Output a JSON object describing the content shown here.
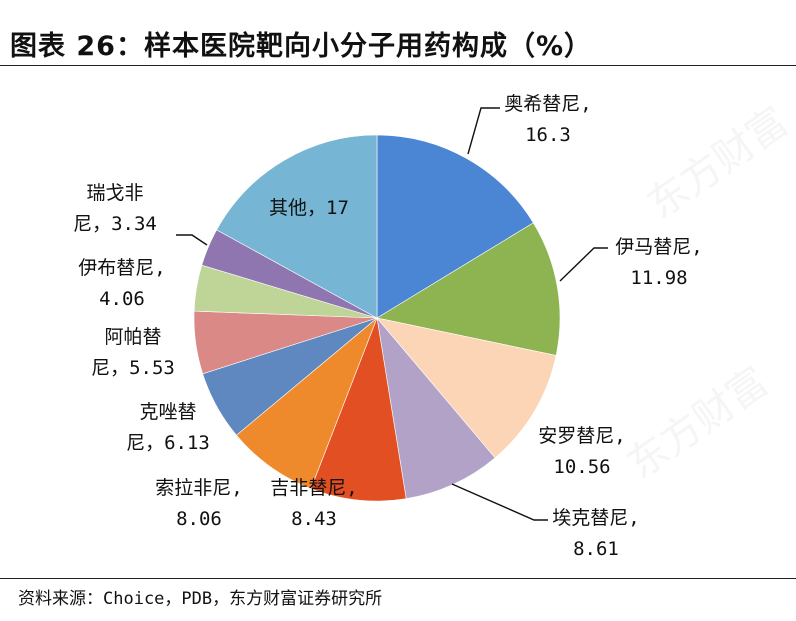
{
  "title": "图表 26：样本医院靶向小分子用药构成（%）",
  "source": "资料来源：Choice，PDB，东方财富证券研究所",
  "chart_data": {
    "type": "pie",
    "title": "图表 26：样本医院靶向小分子用药构成（%）",
    "unit": "%",
    "start": "12 o'clock",
    "direction": "clockwise",
    "slices": [
      {
        "name": "奥希替尼",
        "value": 16.3,
        "color": "#4a86d4",
        "lines": [
          "奥希替尼,",
          "16.3"
        ]
      },
      {
        "name": "伊马替尼",
        "value": 11.98,
        "color": "#8db451",
        "lines": [
          "伊马替尼,",
          "11.98"
        ]
      },
      {
        "name": "安罗替尼",
        "value": 10.56,
        "color": "#fbd5b5",
        "lines": [
          "安罗替尼,",
          "10.56"
        ]
      },
      {
        "name": "埃克替尼",
        "value": 8.61,
        "color": "#b3a2c8",
        "lines": [
          "埃克替尼,",
          "8.61"
        ]
      },
      {
        "name": "吉非替尼",
        "value": 8.43,
        "color": "#e24f22",
        "lines": [
          "吉非替尼,",
          "8.43"
        ]
      },
      {
        "name": "索拉非尼",
        "value": 8.06,
        "color": "#ee8a2c",
        "lines": [
          "索拉非尼,",
          "8.06"
        ]
      },
      {
        "name": "克唑替尼",
        "value": 6.13,
        "color": "#5f88c1",
        "lines": [
          "克唑替",
          "尼，6.13"
        ]
      },
      {
        "name": "阿帕替尼",
        "value": 5.53,
        "color": "#da8987",
        "lines": [
          "阿帕替",
          "尼，5.53"
        ]
      },
      {
        "name": "伊布替尼",
        "value": 4.06,
        "color": "#bed597",
        "lines": [
          "伊布替尼,",
          "4.06"
        ]
      },
      {
        "name": "瑞戈非尼",
        "value": 3.34,
        "color": "#8f76b1",
        "lines": [
          "瑞戈非",
          "尼，3.34"
        ]
      },
      {
        "name": "其他",
        "value": 17,
        "color": "#76b6d4",
        "lines": [
          "其他，17"
        ]
      }
    ]
  }
}
